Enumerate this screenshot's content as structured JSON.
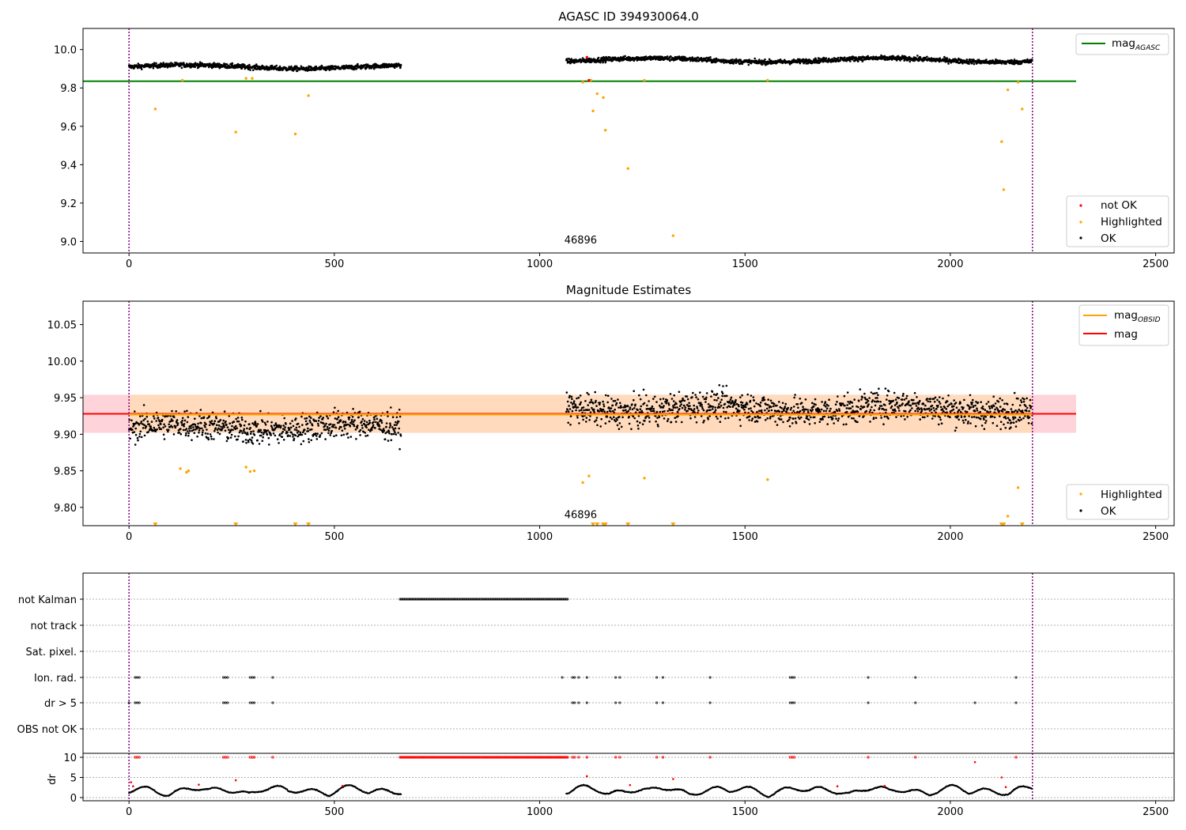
{
  "figure": {
    "colors": {
      "ok": "#000000",
      "not_ok": "#ff0000",
      "highlighted": "#ffa500",
      "mag_agasc": "#008000",
      "mag": "#ff0000",
      "mag_obsid": "#ffa500",
      "band_mag": "#ffc0cb",
      "band_obsid": "#ffdab9",
      "marker": "#800080"
    }
  },
  "chart_data": [
    {
      "type": "scatter",
      "title": "AGASC ID 394930064.0",
      "xlabel": "",
      "ylabel": "",
      "xlim": [
        -112,
        2545
      ],
      "ylim": [
        8.94,
        10.11
      ],
      "xticks": [
        "0",
        "500",
        "1000",
        "1500",
        "2000",
        "2500"
      ],
      "yticks": [
        "9.0",
        "9.2",
        "9.4",
        "9.6",
        "9.8",
        "10.0"
      ],
      "obsid_label": "46896",
      "obsid_label_pos": [
        1060,
        8.99
      ],
      "vlines": [
        0,
        2200
      ],
      "legend_line": {
        "label": "mag",
        "sub": "AGASC"
      },
      "legend_points": [
        "not OK",
        "Highlighted",
        "OK"
      ],
      "mag_agasc": 9.835,
      "segments": [
        [
          0,
          663,
          9.9,
          9.92
        ],
        [
          1065,
          2200,
          9.935,
          9.955
        ]
      ],
      "highlighted": [
        [
          64,
          9.69
        ],
        [
          130,
          9.84
        ],
        [
          260,
          9.57
        ],
        [
          285,
          9.85
        ],
        [
          300,
          9.85
        ],
        [
          405,
          9.56
        ],
        [
          437,
          9.76
        ],
        [
          1105,
          9.83
        ],
        [
          1125,
          9.84
        ],
        [
          1130,
          9.68
        ],
        [
          1140,
          9.77
        ],
        [
          1155,
          9.75
        ],
        [
          1160,
          9.58
        ],
        [
          1215,
          9.38
        ],
        [
          1255,
          9.84
        ],
        [
          1325,
          9.03
        ],
        [
          1555,
          9.84
        ],
        [
          2125,
          9.52
        ],
        [
          2130,
          9.27
        ],
        [
          2140,
          9.79
        ],
        [
          2165,
          9.83
        ],
        [
          2175,
          9.69
        ]
      ],
      "not_ok": [
        [
          1115,
          9.96
        ],
        [
          1120,
          9.84
        ]
      ]
    },
    {
      "type": "scatter",
      "title": "Magnitude Estimates",
      "xlabel": "",
      "ylabel": "",
      "xlim": [
        -112,
        2545
      ],
      "ylim": [
        9.775,
        10.082
      ],
      "xticks": [
        "0",
        "500",
        "1000",
        "1500",
        "2000",
        "2500"
      ],
      "yticks": [
        "9.80",
        "9.85",
        "9.90",
        "9.95",
        "10.00",
        "10.05"
      ],
      "obsid_label": "46896",
      "obsid_label_pos": [
        1060,
        9.7855
      ],
      "vlines": [
        0,
        2200
      ],
      "mag": 9.928,
      "mag_band": [
        9.902,
        9.954
      ],
      "mag_obsid": 9.927,
      "obsid_band": [
        9.902,
        9.954
      ],
      "legend_lines": [
        {
          "label": "mag",
          "sub": "OBSID",
          "color": "#ffa500"
        },
        {
          "label": "mag",
          "sub": "",
          "color": "#ff0000"
        }
      ],
      "legend_points": [
        "Highlighted",
        "OK"
      ],
      "segments": [
        [
          0,
          663,
          9.905,
          9.915
        ],
        [
          1065,
          2200,
          9.93,
          9.94
        ]
      ],
      "highlighted": [
        [
          125,
          9.853
        ],
        [
          140,
          9.848
        ],
        [
          145,
          9.85
        ],
        [
          285,
          9.855
        ],
        [
          295,
          9.849
        ],
        [
          305,
          9.85
        ],
        [
          1105,
          9.834
        ],
        [
          1120,
          9.843
        ],
        [
          1255,
          9.84
        ],
        [
          1555,
          9.838
        ],
        [
          2140,
          9.788
        ],
        [
          2165,
          9.827
        ]
      ],
      "down_markers": [
        64,
        260,
        405,
        437,
        1130,
        1140,
        1155,
        1160,
        1215,
        1325,
        2125,
        2130,
        2175
      ]
    },
    {
      "type": "scatter",
      "title": "",
      "xlabel": "",
      "ylabel": "dr",
      "xlim": [
        -112,
        2545
      ],
      "xticks": [
        "0",
        "500",
        "1000",
        "1500",
        "2000",
        "2500"
      ],
      "flag_rows": [
        "not Kalman",
        "not track",
        "Sat. pixel.",
        "Ion. rad.",
        "dr > 5",
        "OBS not OK"
      ],
      "dr_ylim": [
        -0.4,
        10.4
      ],
      "dr_yticks": [
        "0",
        "5",
        "10"
      ],
      "not_kalman_range": [
        660,
        1070
      ],
      "ion_rad_x": [
        15,
        20,
        25,
        230,
        235,
        240,
        295,
        300,
        305,
        350,
        1055,
        1080,
        1085,
        1095,
        1115,
        1185,
        1195,
        1285,
        1300,
        1415,
        1610,
        1615,
        1620,
        1800,
        1915,
        2160
      ],
      "dr_gt5_x": [
        0,
        15,
        20,
        25,
        230,
        235,
        240,
        295,
        300,
        305,
        350,
        1080,
        1085,
        1095,
        1115,
        1185,
        1195,
        1285,
        1300,
        1415,
        1610,
        1615,
        1620,
        1800,
        1915,
        2060,
        2160
      ],
      "dr_clipped_x": [
        15,
        20,
        25,
        230,
        235,
        240,
        295,
        300,
        305,
        350,
        1080,
        1085,
        1095,
        1115,
        1185,
        1195,
        1285,
        1300,
        1415,
        1610,
        1615,
        1620,
        1800,
        1915,
        2160
      ],
      "dr_red_points": [
        [
          5,
          3.8
        ],
        [
          10,
          2.8
        ],
        [
          170,
          3.2
        ],
        [
          260,
          4.3
        ],
        [
          520,
          2.9
        ],
        [
          1115,
          5.3
        ],
        [
          1220,
          3.1
        ],
        [
          1325,
          4.6
        ],
        [
          1725,
          2.8
        ],
        [
          1840,
          2.9
        ],
        [
          2060,
          8.8
        ],
        [
          2125,
          5.0
        ],
        [
          2135,
          2.6
        ]
      ],
      "dr_segments": [
        [
          0,
          663
        ],
        [
          1065,
          2200
        ]
      ]
    }
  ]
}
